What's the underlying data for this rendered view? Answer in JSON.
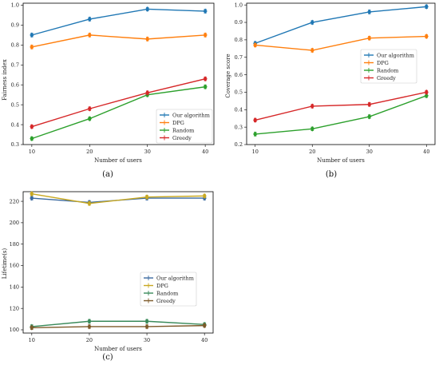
{
  "colors": {
    "our_algorithm": "#1f77b4",
    "dpg": "#ff7f0e",
    "random": "#2ca02c",
    "greedy": "#d62728",
    "c_our_algorithm": "#3b6aa0",
    "c_dpg": "#c8a820",
    "c_random": "#3a8a5a",
    "c_greedy": "#7d5a2a"
  },
  "chart_data": [
    {
      "type": "line",
      "panel_label": "(a)",
      "xlabel": "Number of users",
      "ylabel": "Fairness index",
      "x": [
        10,
        20,
        30,
        40
      ],
      "xlim": [
        8.5,
        41.5
      ],
      "ylim": [
        0.3,
        1.01
      ],
      "yticks": [
        "0.3",
        "0.4",
        "0.5",
        "0.6",
        "0.7",
        "0.8",
        "0.9",
        "1.0"
      ],
      "ytick_values": [
        0.3,
        0.4,
        0.5,
        0.6,
        0.7,
        0.8,
        0.9,
        1.0
      ],
      "legend": "lower-right",
      "series": [
        {
          "name": "Our algorithm",
          "values": [
            0.85,
            0.93,
            0.98,
            0.97
          ]
        },
        {
          "name": "DPG",
          "values": [
            0.79,
            0.85,
            0.83,
            0.85
          ]
        },
        {
          "name": "Random",
          "values": [
            0.33,
            0.43,
            0.55,
            0.59
          ]
        },
        {
          "name": "Greedy",
          "values": [
            0.39,
            0.48,
            0.56,
            0.63
          ]
        }
      ]
    },
    {
      "type": "line",
      "panel_label": "(b)",
      "xlabel": "Number of users",
      "ylabel": "Coverage score",
      "x": [
        10,
        20,
        30,
        40
      ],
      "xlim": [
        8.5,
        41.5
      ],
      "ylim": [
        0.2,
        1.01
      ],
      "yticks": [
        "0.2",
        "0.3",
        "0.4",
        "0.5",
        "0.6",
        "0.7",
        "0.8",
        "0.9",
        "1.0"
      ],
      "ytick_values": [
        0.2,
        0.3,
        0.4,
        0.5,
        0.6,
        0.7,
        0.8,
        0.9,
        1.0
      ],
      "legend": "upper-left",
      "series": [
        {
          "name": "Our algorithm",
          "values": [
            0.78,
            0.9,
            0.96,
            0.99
          ]
        },
        {
          "name": "DPG",
          "values": [
            0.77,
            0.74,
            0.81,
            0.82
          ]
        },
        {
          "name": "Random",
          "values": [
            0.26,
            0.29,
            0.36,
            0.48
          ]
        },
        {
          "name": "Greedy",
          "values": [
            0.34,
            0.42,
            0.43,
            0.5
          ]
        }
      ]
    },
    {
      "type": "line",
      "panel_label": "(c)",
      "xlabel": "Number of users",
      "ylabel": "Lifetime(s)",
      "x": [
        10,
        20,
        30,
        40
      ],
      "xlim": [
        8.5,
        41.5
      ],
      "ylim": [
        97,
        229
      ],
      "yticks": [
        "100",
        "120",
        "140",
        "160",
        "180",
        "200",
        "220"
      ],
      "ytick_values": [
        100,
        120,
        140,
        160,
        180,
        200,
        220
      ],
      "legend": "center-right",
      "series": [
        {
          "name": "Our algorithm",
          "values": [
            223,
            219,
            223,
            223
          ]
        },
        {
          "name": "DPG",
          "values": [
            227,
            218,
            224,
            225
          ]
        },
        {
          "name": "Random",
          "values": [
            103,
            108,
            108,
            105
          ]
        },
        {
          "name": "Greedy",
          "values": [
            102,
            103,
            103,
            104
          ]
        }
      ]
    }
  ]
}
